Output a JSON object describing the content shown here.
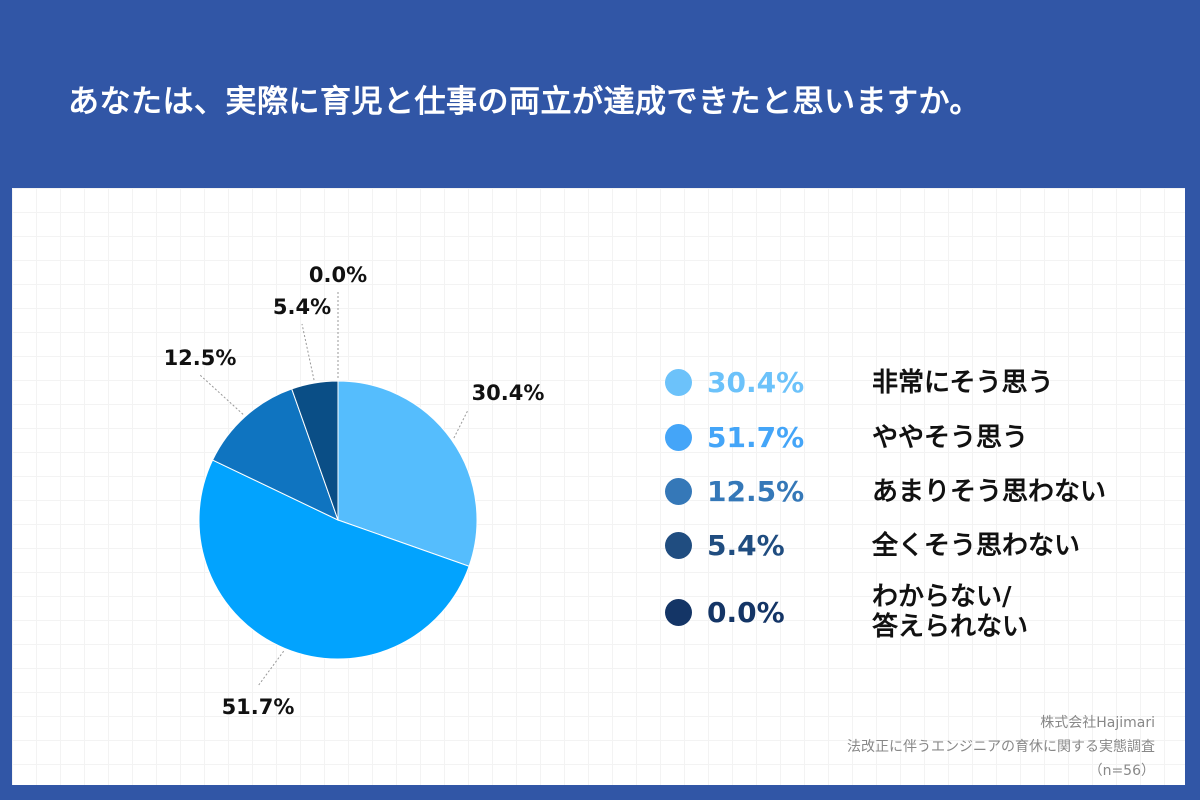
{
  "title": "あなたは、実際に育児と仕事の両立が達成できたと思いますか。",
  "chart_data": {
    "type": "pie",
    "title": "あなたは、実際に育児と仕事の両立が達成できたと思いますか。",
    "categories": [
      "非常にそう思う",
      "ややそう思う",
      "あまりそう思わない",
      "全くそう思わない",
      "わからない/答えられない"
    ],
    "values": [
      30.4,
      51.7,
      12.5,
      5.4,
      0.0
    ],
    "value_labels": [
      "30.4%",
      "51.7%",
      "12.5%",
      "5.4%",
      "0.0%"
    ],
    "slice_colors": [
      "#55bdfd",
      "#02a3fe",
      "#0f74c0",
      "#0a4e86",
      "#0b3566"
    ],
    "legend_colors": [
      "#6cc2fa",
      "#44a5f8",
      "#3578b8",
      "#204d80",
      "#143566"
    ],
    "legend_placement": "right"
  },
  "legend": [
    {
      "pct": "30.4%",
      "label": "非常にそう思う"
    },
    {
      "pct": "51.7%",
      "label": "ややそう思う"
    },
    {
      "pct": "12.5%",
      "label": "あまりそう思わない"
    },
    {
      "pct": "5.4%",
      "label": "全くそう思わない"
    },
    {
      "pct": "0.0%",
      "label": "わからない/\n答えられない"
    }
  ],
  "source": {
    "company": "株式会社Hajimari",
    "survey": "法改正に伴うエンジニアの育休に関する実態調査",
    "n": "（n=56）"
  }
}
